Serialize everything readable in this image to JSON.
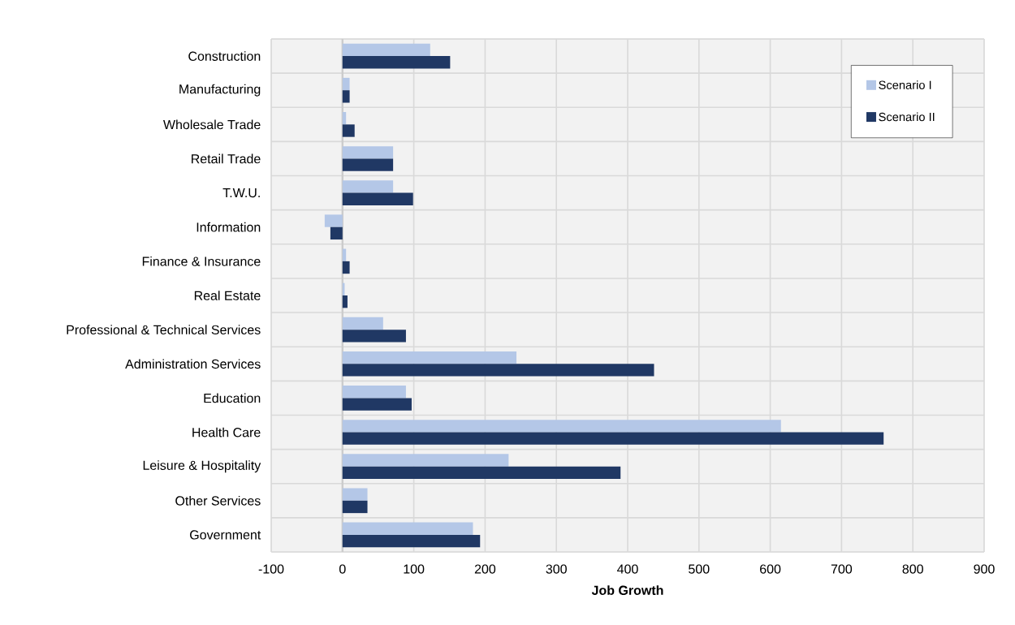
{
  "chart_data": {
    "type": "bar",
    "orientation": "horizontal",
    "xlabel": "Job Growth",
    "categories": [
      "Construction",
      "Manufacturing",
      "Wholesale Trade",
      "Retail Trade",
      "T.W.U.",
      "Information",
      "Finance & Insurance",
      "Real Estate",
      "Professional & Technical Services",
      "Administration Services",
      "Education",
      "Health Care",
      "Leisure & Hospitality",
      "Other Services",
      "Government"
    ],
    "series": [
      {
        "name": "Scenario I",
        "color": "#b4c7e7",
        "values": [
          123,
          10,
          5,
          71,
          71,
          -25,
          5,
          3,
          57,
          244,
          89,
          615,
          233,
          35,
          183
        ]
      },
      {
        "name": "Scenario II",
        "color": "#203864",
        "values": [
          151,
          10,
          17,
          71,
          99,
          -17,
          10,
          7,
          89,
          437,
          97,
          759,
          390,
          35,
          193
        ]
      }
    ],
    "xlim": [
      -100,
      900
    ],
    "xticks": [
      -100,
      0,
      100,
      200,
      300,
      400,
      500,
      600,
      700,
      800,
      900
    ],
    "grid": true,
    "legend": "top right"
  }
}
